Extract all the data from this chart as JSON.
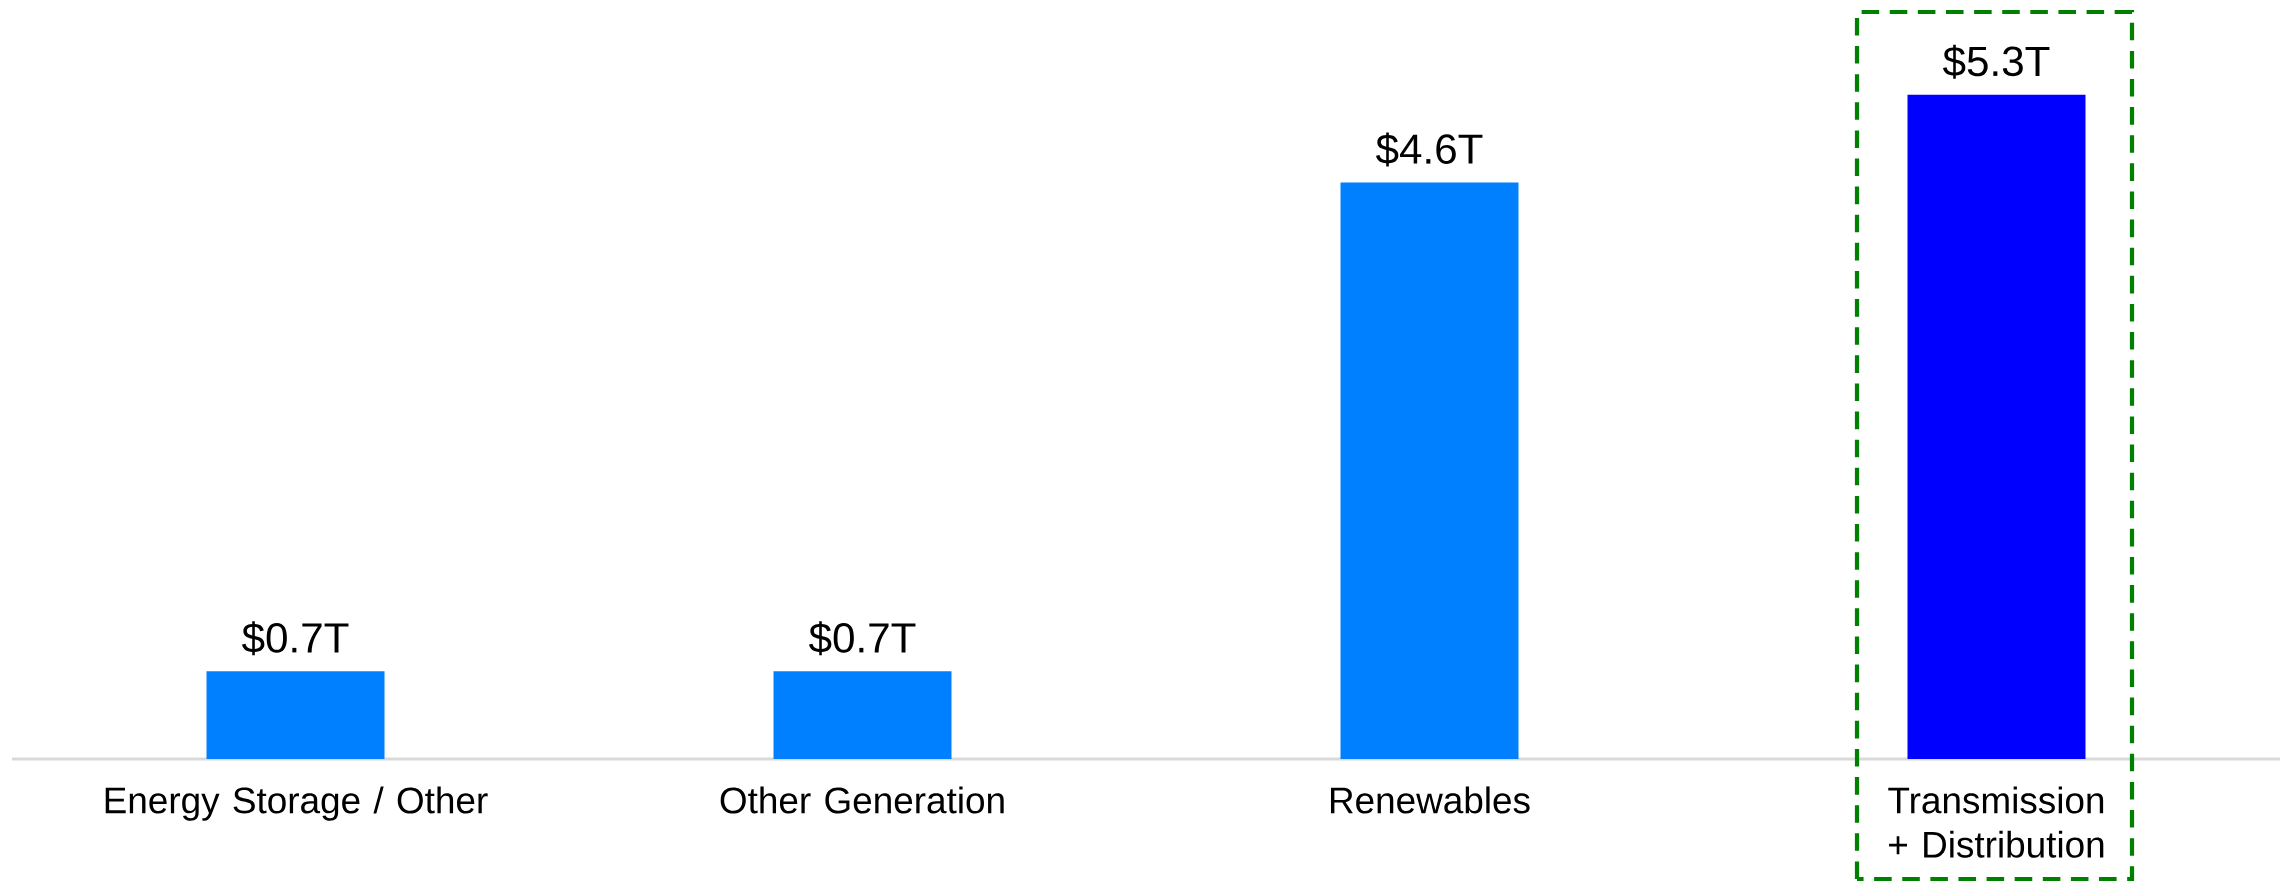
{
  "chart_data": {
    "type": "bar",
    "categories": [
      "Energy Storage / Other",
      "Other Generation",
      "Renewables",
      "Transmission + Distribution"
    ],
    "values": [
      0.7,
      0.7,
      4.6,
      5.3
    ],
    "value_labels": [
      "$0.7T",
      "$0.7T",
      "$4.6T",
      "$5.3T"
    ],
    "colors": [
      "#0080ff",
      "#0080ff",
      "#0080ff",
      "#0000ff"
    ]
  }
}
